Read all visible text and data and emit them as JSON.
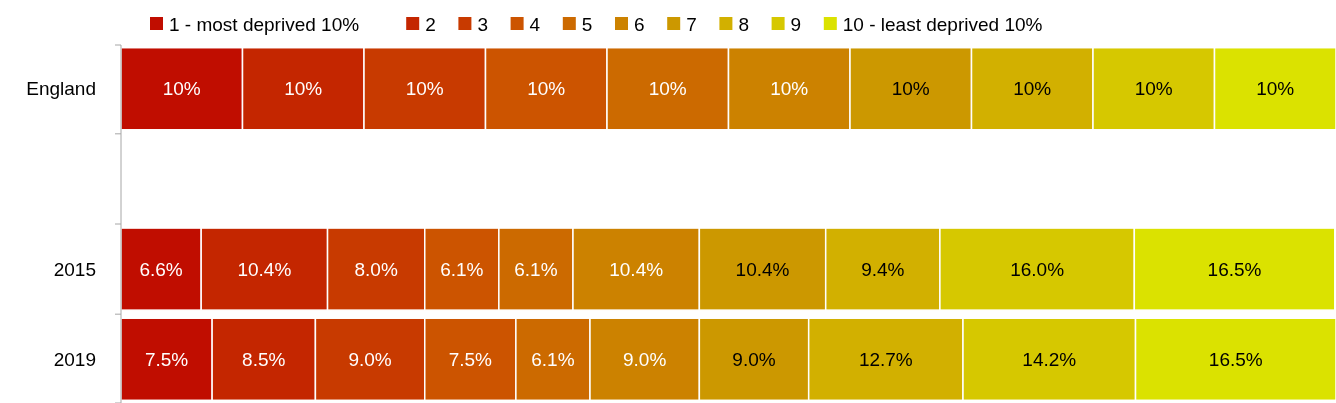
{
  "chart_data": {
    "type": "bar",
    "orientation": "horizontal",
    "stacked": true,
    "categories": [
      "England",
      null,
      "2015",
      "2019"
    ],
    "series": [
      {
        "name": "1 - most deprived 10%",
        "color": "#c00d00",
        "values": [
          10,
          null,
          6.6,
          7.5
        ],
        "value_labels": [
          "10%",
          null,
          "6.6%",
          "7.5%"
        ]
      },
      {
        "name": "2",
        "color": "#c42600",
        "values": [
          10,
          null,
          10.4,
          8.5
        ],
        "value_labels": [
          "10%",
          null,
          "10.4%",
          "8.5%"
        ]
      },
      {
        "name": "3",
        "color": "#c83a00",
        "values": [
          10,
          null,
          8.0,
          9.0
        ],
        "value_labels": [
          "10%",
          null,
          "8.0%",
          "9.0%"
        ]
      },
      {
        "name": "4",
        "color": "#cc5400",
        "values": [
          10,
          null,
          6.1,
          7.5
        ],
        "value_labels": [
          "10%",
          null,
          "6.1%",
          "7.5%"
        ]
      },
      {
        "name": "5",
        "color": "#cc6a00",
        "values": [
          10,
          null,
          6.1,
          6.1
        ],
        "value_labels": [
          "10%",
          null,
          "6.1%",
          "6.1%"
        ]
      },
      {
        "name": "6",
        "color": "#cc8200",
        "values": [
          10,
          null,
          10.4,
          9.0
        ],
        "value_labels": [
          "10%",
          null,
          "10.4%",
          "9.0%"
        ]
      },
      {
        "name": "7",
        "color": "#cc9800",
        "values": [
          10,
          null,
          10.4,
          9.0
        ],
        "value_labels": [
          "10%",
          null,
          "10.4%",
          "9.0%"
        ]
      },
      {
        "name": "8",
        "color": "#d2b000",
        "values": [
          10,
          null,
          9.4,
          12.7
        ],
        "value_labels": [
          "10%",
          null,
          "9.4%",
          "12.7%"
        ]
      },
      {
        "name": "9",
        "color": "#d6c800",
        "values": [
          10,
          null,
          16.0,
          14.2
        ],
        "value_labels": [
          "10%",
          null,
          "16.0%",
          "14.2%"
        ]
      },
      {
        "name": "10 - least deprived 10%",
        "color": "#dbe200",
        "values": [
          10,
          null,
          16.5,
          16.5
        ],
        "value_labels": [
          "10%",
          null,
          "16.5%",
          "16.5%"
        ]
      }
    ],
    "tick_labels": "y",
    "legend": "top"
  }
}
